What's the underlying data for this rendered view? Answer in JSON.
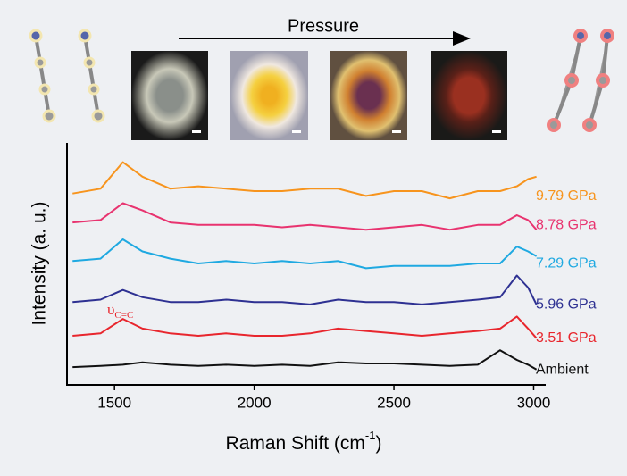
{
  "chart_data": {
    "type": "line",
    "title": "Pressure",
    "x_label": {
      "text": "Raman Shift (cm",
      "superscript": "-1",
      "suffix": ")"
    },
    "y_label": "Intensity (a. u.)",
    "annotation": {
      "symbol": "υ",
      "subscript": "C=C"
    },
    "x": [
      1350,
      1450,
      1530,
      1600,
      1700,
      1800,
      1900,
      2000,
      2100,
      2200,
      2300,
      2400,
      2500,
      2600,
      2700,
      2800,
      2880,
      2940,
      2980,
      3010
    ],
    "xlim": [
      1330,
      3040
    ],
    "ylim": [
      0,
      100
    ],
    "xticks": [
      1500,
      2000,
      2500,
      3000
    ],
    "series": [
      {
        "name": "Ambient",
        "color": "#111111",
        "values": [
          7,
          7.5,
          8,
          9,
          8,
          7.5,
          8,
          7.5,
          8,
          7.5,
          9,
          8.5,
          8.5,
          8,
          7.5,
          8,
          14,
          10,
          8,
          6
        ]
      },
      {
        "name": "3.51 GPa",
        "color": "#e8262d",
        "values": [
          20,
          21,
          27,
          23,
          21,
          20,
          21,
          20,
          20,
          21,
          23,
          22,
          21,
          20,
          21,
          22,
          23,
          28,
          23,
          19
        ]
      },
      {
        "name": "5.96 GPa",
        "color": "#2e3192",
        "values": [
          34,
          35,
          39,
          36,
          34,
          34,
          35,
          34,
          34,
          33,
          35,
          34,
          34,
          33,
          34,
          35,
          36,
          45,
          40,
          33
        ]
      },
      {
        "name": "7.29 GPa",
        "color": "#1fa9e1",
        "values": [
          51,
          52,
          60,
          55,
          52,
          50,
          51,
          50,
          51,
          50,
          51,
          48,
          49,
          49,
          49,
          50,
          50,
          57,
          55,
          53
        ]
      },
      {
        "name": "8.78 GPa",
        "color": "#e8336f",
        "values": [
          67,
          68,
          75,
          72,
          67,
          66,
          66,
          66,
          65,
          66,
          65,
          64,
          65,
          66,
          64,
          66,
          66,
          70,
          68,
          64
        ]
      },
      {
        "name": "9.79 GPa",
        "color": "#f7941d",
        "values": [
          79,
          81,
          92,
          86,
          81,
          82,
          81,
          80,
          80,
          81,
          81,
          78,
          80,
          80,
          77,
          80,
          80,
          82,
          85,
          86
        ]
      }
    ]
  }
}
